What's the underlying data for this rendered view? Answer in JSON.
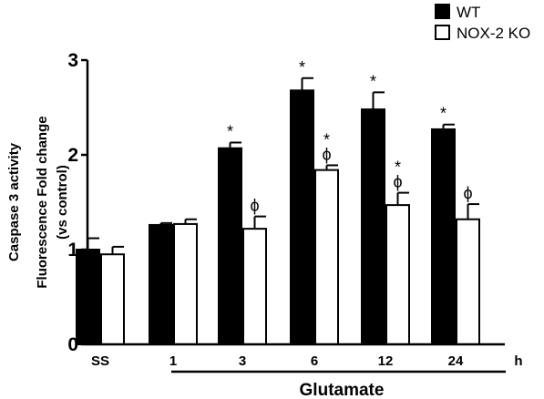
{
  "chart_data": {
    "type": "bar",
    "categories": [
      "SS",
      "1",
      "3",
      "6",
      "12",
      "24"
    ],
    "unit_label": "h",
    "xlabel": "Glutamate",
    "ylabel_lines": [
      "Caspase 3 activity",
      "Fluorescence Fold change",
      "(vs control)"
    ],
    "ylim": [
      0,
      3
    ],
    "yticks": [
      "0",
      "1",
      "2",
      "3"
    ],
    "grid": false,
    "legend_position": "top-right",
    "series": [
      {
        "name": "WT",
        "color": "#000000",
        "values": [
          1.0,
          1.26,
          2.07,
          2.68,
          2.48,
          2.27
        ],
        "errors": [
          0.12,
          0.02,
          0.06,
          0.13,
          0.18,
          0.05
        ],
        "marks": [
          "",
          "",
          "*",
          "*",
          "*",
          "*"
        ]
      },
      {
        "name": "NOX-2 KO",
        "color": "#ffffff",
        "values": [
          0.95,
          1.27,
          1.22,
          1.84,
          1.47,
          1.32
        ],
        "errors": [
          0.08,
          0.05,
          0.13,
          0.05,
          0.13,
          0.16
        ],
        "marks": [
          "",
          "",
          "ϕ",
          "*|ϕ",
          "*|ϕ",
          "ϕ"
        ]
      }
    ]
  }
}
